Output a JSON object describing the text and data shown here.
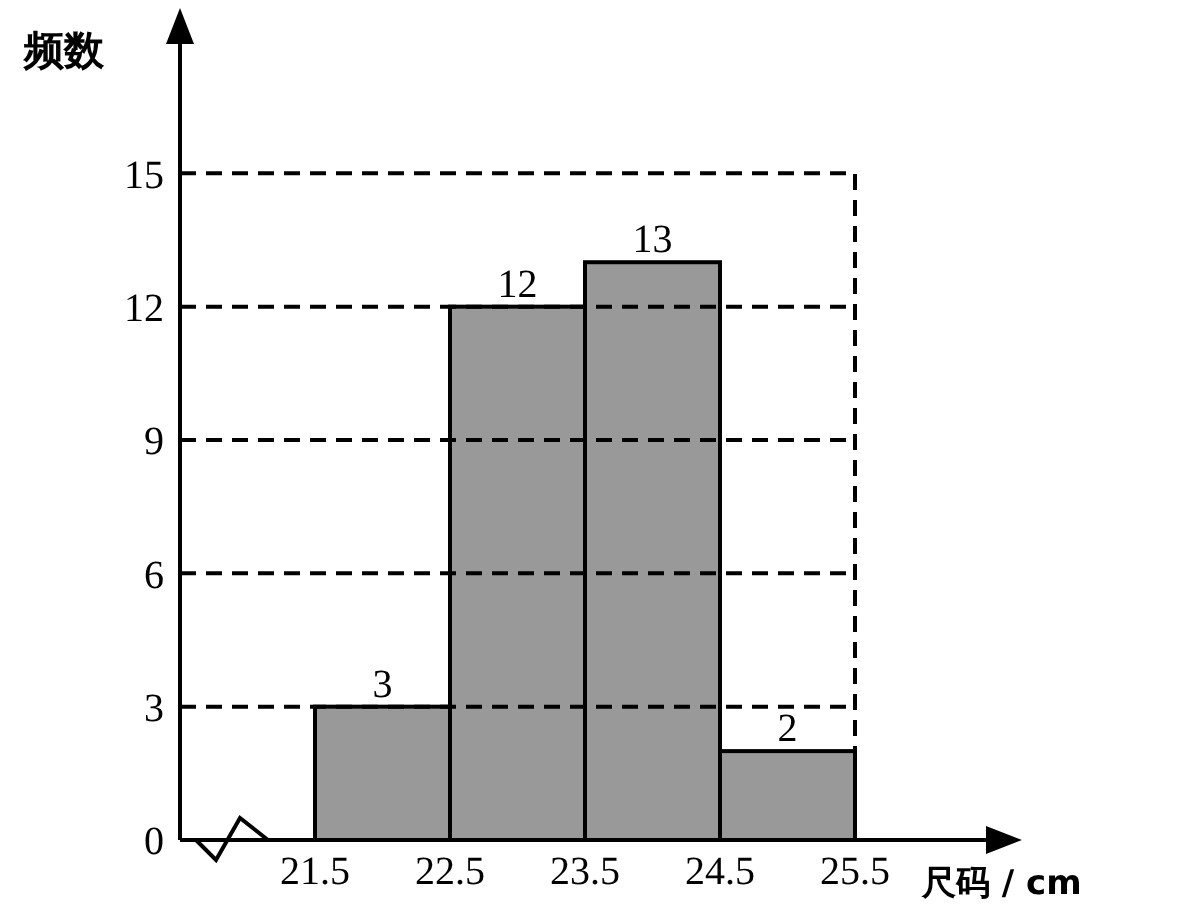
{
  "chart_data": {
    "type": "histogram",
    "xlabel": "尺码 / cm",
    "ylabel": "频数",
    "bins": [
      21.5,
      22.5,
      23.5,
      24.5,
      25.5
    ],
    "values": [
      3,
      12,
      13,
      2
    ],
    "color": "#999999",
    "xlim": [
      20.5,
      26.5
    ],
    "xticks": [
      21.5,
      22.5,
      23.5,
      24.5,
      25.5
    ],
    "ylim": [
      0,
      18
    ],
    "yticks": [
      0,
      3,
      6,
      9,
      12,
      15
    ],
    "grid": "y",
    "data_labels": true,
    "ref_lines": [
      {
        "axis": "x",
        "value": 25.5,
        "color": "#000000",
        "line_style": "dashed"
      }
    ]
  }
}
